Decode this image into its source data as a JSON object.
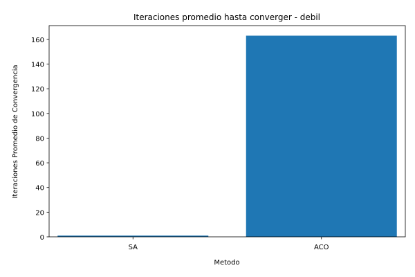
{
  "chart_data": {
    "type": "bar",
    "title": "Iteraciones promedio hasta converger - debil",
    "xlabel": "Metodo",
    "ylabel": "Iteraciones Promedio de Convergencia",
    "categories": [
      "SA",
      "ACO"
    ],
    "values": [
      1,
      163
    ],
    "ylim": [
      0,
      171.15
    ],
    "yticks": [
      0,
      20,
      40,
      60,
      80,
      100,
      120,
      140,
      160
    ],
    "bar_color": "#1f77b4",
    "grid": false,
    "legend": "none"
  }
}
